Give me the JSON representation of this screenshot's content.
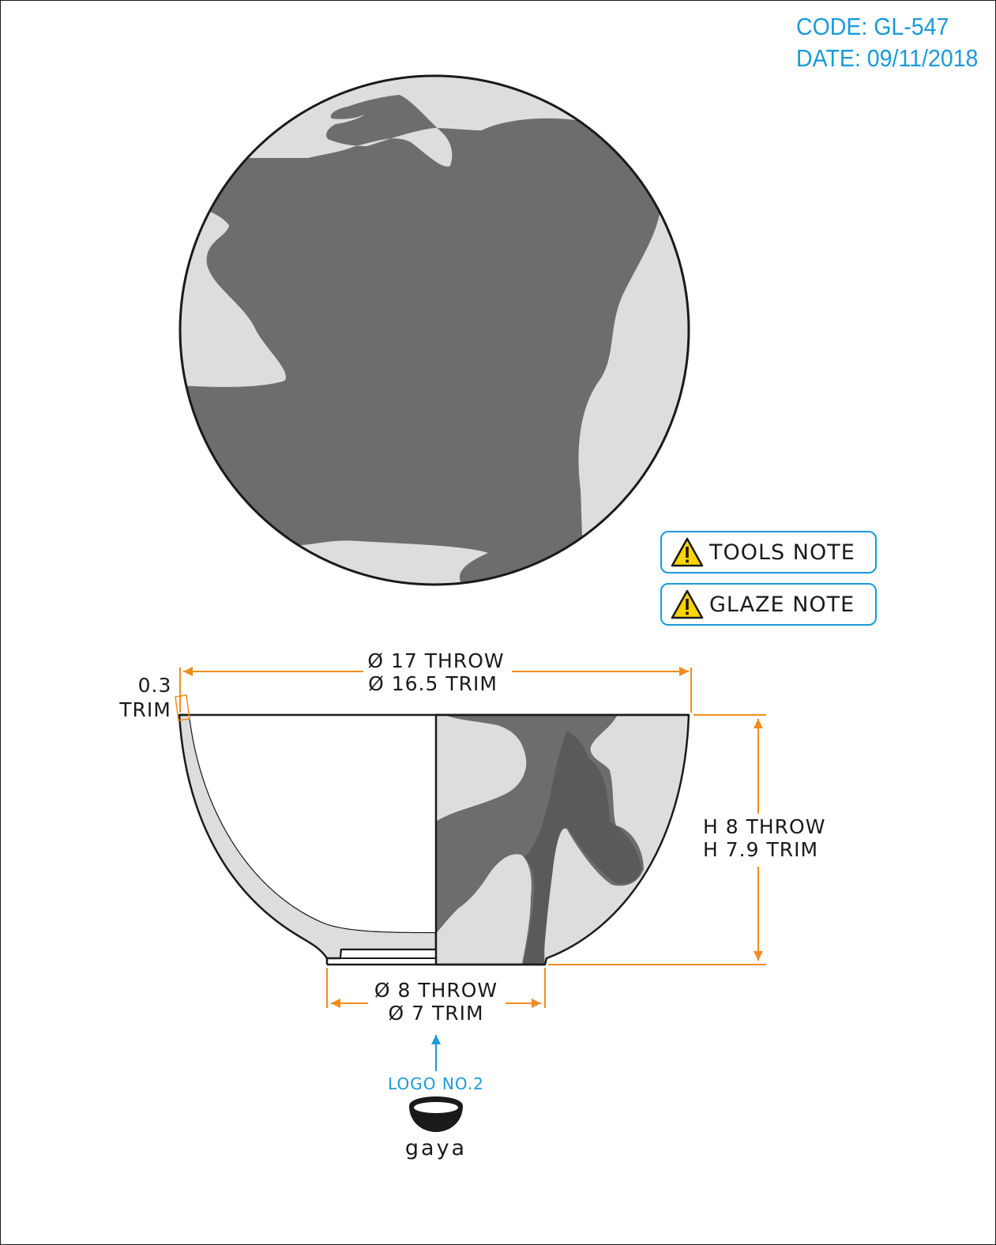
{
  "header": {
    "code": "CODE: GL-547",
    "date": "DATE: 09/11/2018"
  },
  "notes": [
    {
      "label": "TOOLS NOTE",
      "icon": "warning-icon"
    },
    {
      "label": "GLAZE NOTE",
      "icon": "warning-icon"
    }
  ],
  "dimensions": {
    "rim_throw": "Ø 17 THROW",
    "rim_trim": "Ø 16.5 TRIM",
    "wall_value": "0.3",
    "wall_label": "TRIM",
    "height_throw": "H 8 THROW",
    "height_trim": "H 7.9 TRIM",
    "foot_throw": "Ø 8 THROW",
    "foot_trim": "Ø 7 TRIM"
  },
  "logo": {
    "caption": "LOGO NO.2",
    "brand": "gaya"
  },
  "colors": {
    "accent": "#1a9ad9",
    "dimension": "#f28c1e",
    "glaze_dark": "#6d6d6d",
    "glaze_darker": "#5a5a5a",
    "glaze_light": "#dcdedd",
    "outline": "#1a1a1a"
  }
}
